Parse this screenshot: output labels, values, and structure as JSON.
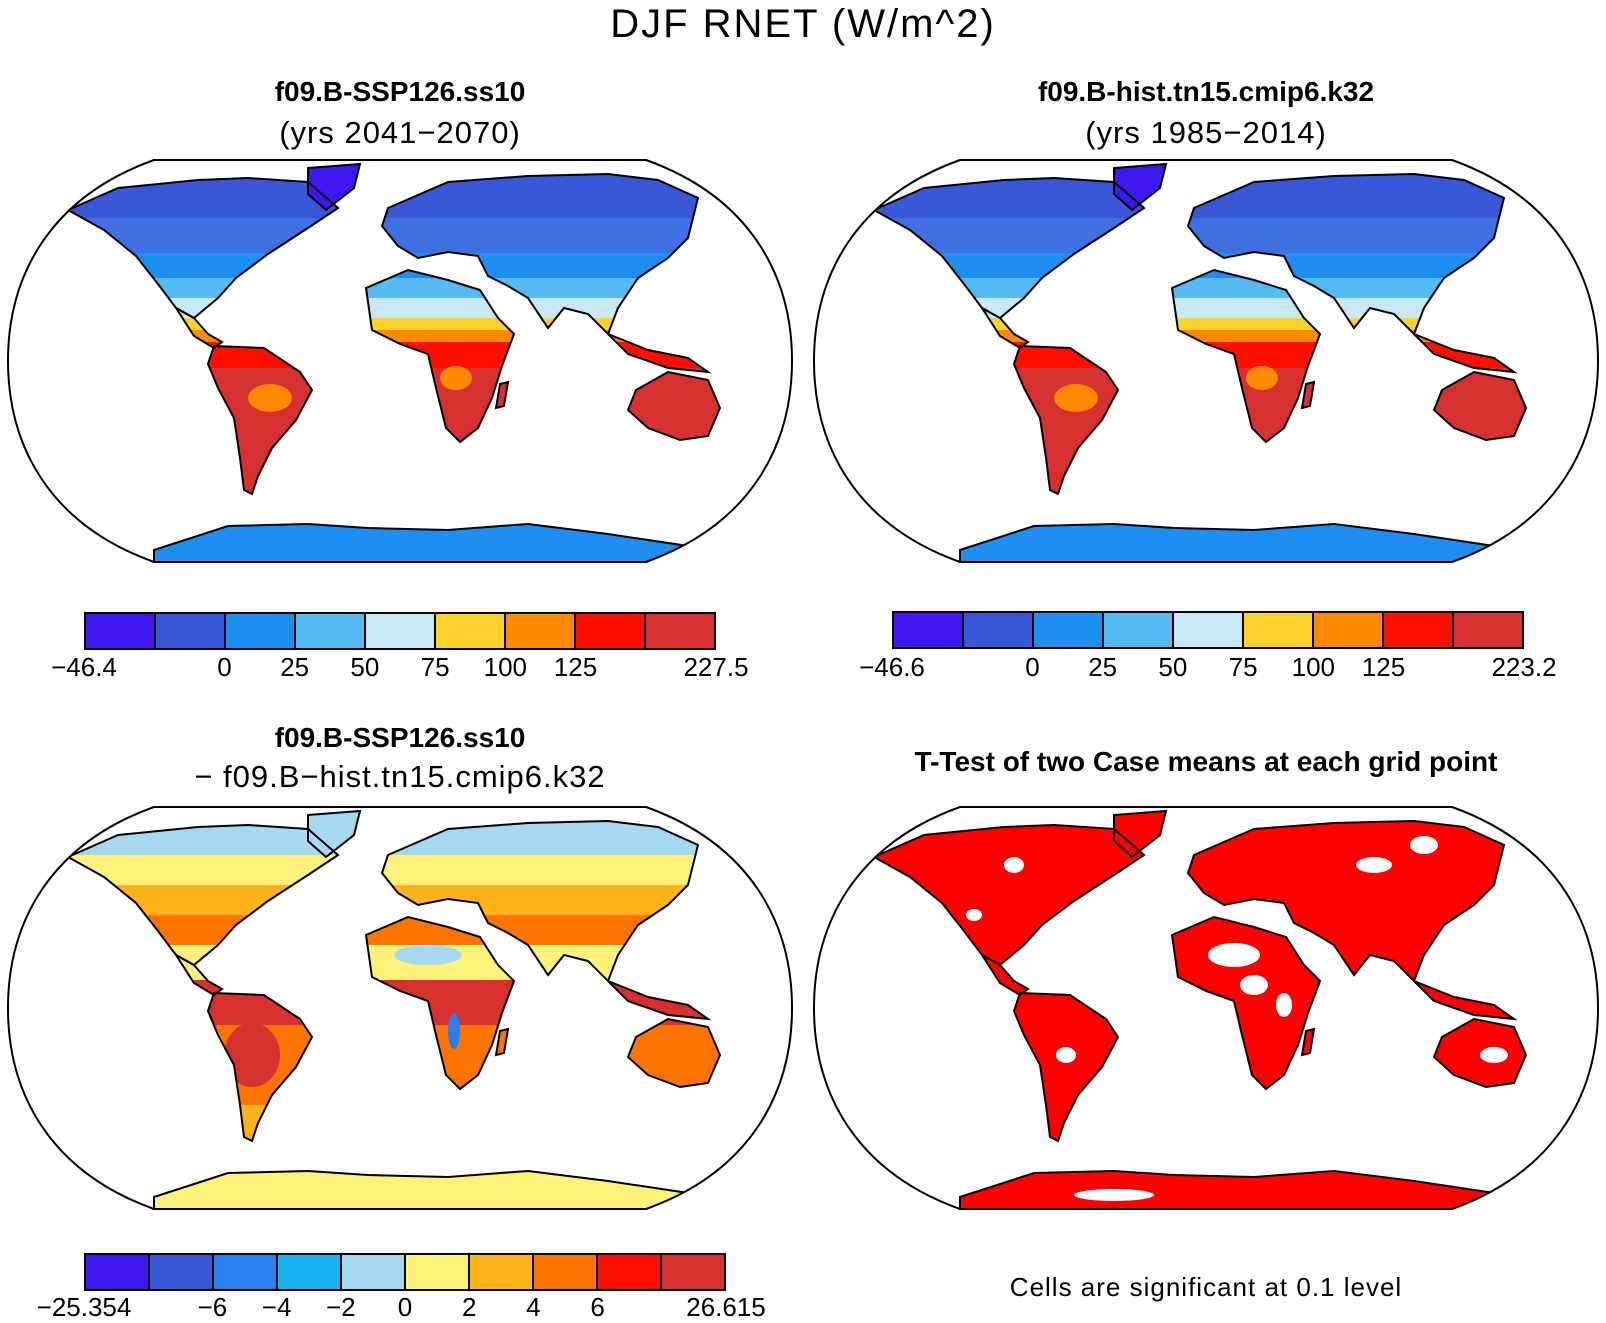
{
  "figure": {
    "title": "DJF RNET (W/m^2)"
  },
  "panels": [
    {
      "id": "case1",
      "title": "f09.B-SSP126.ss10",
      "subtitle": "(yrs 2041−2070)",
      "colorbar": {
        "colors": [
          "#3f17f0",
          "#3858d8",
          "#1e8ff0",
          "#54baf0",
          "#c8e8f6",
          "#ffd22b",
          "#ff8a00",
          "#ff1000",
          "#d73030"
        ],
        "tick_labels": [
          "−46.4",
          "0",
          "25",
          "50",
          "75",
          "100",
          "125",
          "227.5"
        ]
      }
    },
    {
      "id": "case2",
      "title": "f09.B-hist.tn15.cmip6.k32",
      "subtitle": "(yrs 1985−2014)",
      "colorbar": {
        "colors": [
          "#3f17f0",
          "#3858d8",
          "#1e8ff0",
          "#54baf0",
          "#c8e8f6",
          "#ffd22b",
          "#ff8a00",
          "#ff1000",
          "#d73030"
        ],
        "tick_labels": [
          "−46.6",
          "0",
          "25",
          "50",
          "75",
          "100",
          "125",
          "223.2"
        ]
      }
    },
    {
      "id": "difference",
      "title": "f09.B-SSP126.ss10",
      "subtitle": "− f09.B−hist.tn15.cmip6.k32",
      "colorbar": {
        "colors": [
          "#3f17f0",
          "#3858d8",
          "#2a7ff0",
          "#18b4f0",
          "#a6d8f2",
          "#fff27a",
          "#ffb21a",
          "#ff7300",
          "#ff1000",
          "#d73030"
        ],
        "tick_labels": [
          "−25.354",
          "−6",
          "−4",
          "−2",
          "0",
          "2",
          "4",
          "6",
          "26.615"
        ]
      }
    },
    {
      "id": "ttest",
      "title": "T-Test of two Case means at each grid point",
      "note": "Cells are significant at 0.1 level",
      "significant_color": "#ff0000"
    }
  ]
}
